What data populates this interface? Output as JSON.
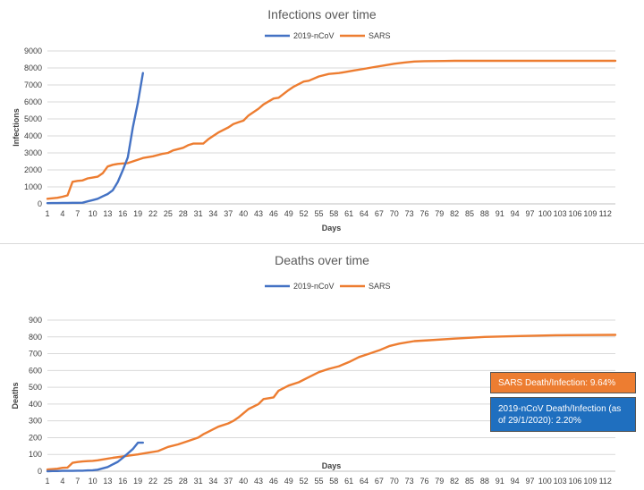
{
  "charts": [
    {
      "type": "line",
      "title": "Infections over time",
      "xlabel": "Days",
      "ylabel": "Infections",
      "ylim": [
        0,
        9000
      ],
      "yticks": [
        0,
        1000,
        2000,
        3000,
        4000,
        5000,
        6000,
        7000,
        8000,
        9000
      ],
      "xlim": [
        1,
        114
      ],
      "xticks": [
        1,
        4,
        7,
        10,
        13,
        16,
        19,
        22,
        25,
        28,
        31,
        34,
        37,
        40,
        43,
        46,
        49,
        52,
        55,
        58,
        61,
        64,
        67,
        70,
        73,
        76,
        79,
        82,
        85,
        88,
        91,
        94,
        97,
        100,
        103,
        106,
        109,
        112
      ],
      "grid": true,
      "legend": "top-center",
      "series": [
        {
          "name": "2019-nCoV",
          "color": "#4472c4",
          "x": [
            1,
            2,
            3,
            4,
            5,
            6,
            7,
            8,
            9,
            10,
            11,
            12,
            13,
            14,
            15,
            16,
            17,
            18,
            19,
            20
          ],
          "y": [
            40,
            45,
            50,
            60,
            60,
            62,
            65,
            70,
            150,
            220,
            300,
            440,
            580,
            800,
            1290,
            1980,
            2740,
            4500,
            5970,
            7700
          ]
        },
        {
          "name": "SARS",
          "color": "#ed7d31",
          "x": [
            1,
            3,
            4,
            5,
            6,
            7,
            8,
            9,
            10,
            11,
            12,
            13,
            14,
            15,
            16,
            17,
            19,
            20,
            22,
            24,
            25,
            26,
            28,
            29,
            30,
            32,
            33,
            34,
            35,
            37,
            38,
            39,
            40,
            41,
            43,
            44,
            46,
            47,
            49,
            50,
            52,
            53,
            55,
            57,
            59,
            60,
            62,
            64,
            66,
            68,
            70,
            72,
            74,
            76,
            80,
            82,
            85,
            90,
            100,
            114
          ],
          "y": [
            300,
            360,
            420,
            500,
            1300,
            1350,
            1380,
            1500,
            1550,
            1600,
            1800,
            2200,
            2300,
            2350,
            2380,
            2400,
            2600,
            2700,
            2800,
            2950,
            3000,
            3150,
            3300,
            3450,
            3550,
            3550,
            3800,
            4000,
            4200,
            4500,
            4700,
            4800,
            4900,
            5200,
            5600,
            5850,
            6200,
            6250,
            6700,
            6900,
            7200,
            7250,
            7500,
            7650,
            7700,
            7750,
            7850,
            7950,
            8050,
            8150,
            8250,
            8320,
            8380,
            8400,
            8410,
            8420,
            8420,
            8422,
            8422,
            8422
          ]
        }
      ]
    },
    {
      "type": "line",
      "title": "Deaths over time",
      "xlabel": "Days",
      "ylabel": "Deaths",
      "ylim": [
        0,
        900
      ],
      "yticks": [
        0,
        100,
        200,
        300,
        400,
        500,
        600,
        700,
        800,
        900
      ],
      "xlim": [
        1,
        114
      ],
      "xticks": [
        1,
        4,
        7,
        10,
        13,
        16,
        19,
        22,
        25,
        28,
        31,
        34,
        37,
        40,
        43,
        46,
        49,
        52,
        55,
        58,
        61,
        64,
        67,
        70,
        73,
        76,
        79,
        82,
        85,
        88,
        91,
        94,
        97,
        100,
        103,
        106,
        109,
        112
      ],
      "grid": true,
      "legend": "top-center",
      "series": [
        {
          "name": "2019-nCoV",
          "color": "#4472c4",
          "x": [
            1,
            2,
            3,
            4,
            5,
            6,
            7,
            8,
            9,
            10,
            11,
            12,
            13,
            14,
            15,
            16,
            17,
            18,
            19,
            20
          ],
          "y": [
            0,
            1,
            1,
            2,
            2,
            2,
            3,
            3,
            5,
            6,
            9,
            17,
            25,
            41,
            56,
            80,
            106,
            132,
            170,
            170
          ]
        },
        {
          "name": "SARS",
          "color": "#ed7d31",
          "x": [
            1,
            3,
            4,
            5,
            6,
            7,
            8,
            9,
            10,
            11,
            13,
            14,
            16,
            17,
            19,
            21,
            23,
            25,
            27,
            29,
            31,
            32,
            33,
            34,
            35,
            37,
            38,
            39,
            40,
            41,
            43,
            44,
            46,
            47,
            49,
            51,
            53,
            55,
            57,
            59,
            61,
            63,
            65,
            67,
            69,
            71,
            74,
            77,
            82,
            88,
            95,
            102,
            114
          ],
          "y": [
            10,
            15,
            20,
            22,
            50,
            55,
            58,
            60,
            62,
            65,
            75,
            80,
            88,
            92,
            100,
            110,
            120,
            145,
            160,
            180,
            200,
            220,
            235,
            250,
            265,
            285,
            300,
            320,
            345,
            370,
            400,
            430,
            440,
            480,
            510,
            530,
            560,
            590,
            610,
            625,
            650,
            680,
            700,
            720,
            745,
            760,
            775,
            780,
            790,
            800,
            805,
            810,
            812
          ]
        }
      ]
    }
  ],
  "callouts": {
    "sars": "SARS Death/Infection:  9.64%",
    "ncov": "2019-nCoV Death/Infection (as of 29/1/2020):  2.20%"
  }
}
